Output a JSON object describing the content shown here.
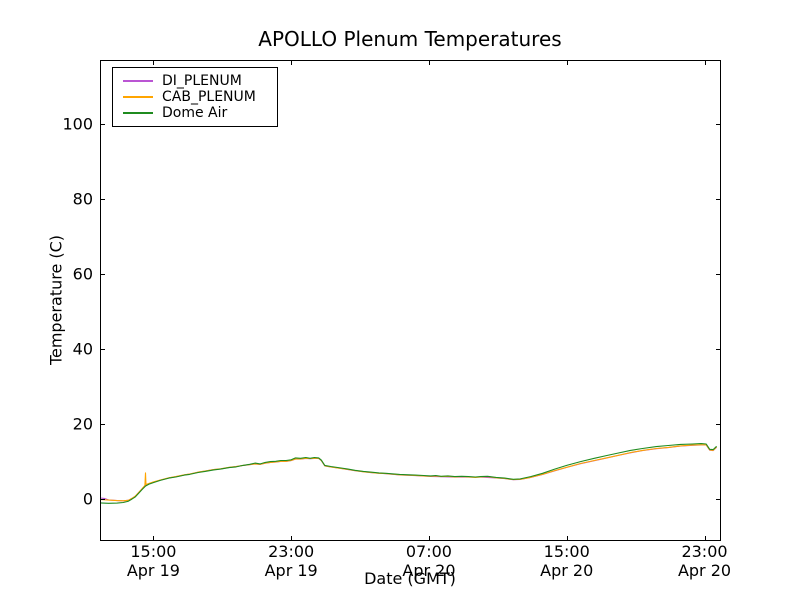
{
  "chart_data": {
    "type": "line",
    "title": "APOLLO Plenum Temperatures",
    "xlabel": "Date (GMT)",
    "ylabel": "Temperature (C)",
    "grid": false,
    "axis_color": "#000000",
    "background_color": "#ffffff",
    "ylim": [
      -11,
      117
    ],
    "yticks": [
      0,
      20,
      40,
      60,
      80,
      100
    ],
    "x_unit": "hours relative to 15:00 Apr 19 GMT",
    "xlim_hours": [
      -3.1,
      32.9
    ],
    "xticks": [
      {
        "hour": 0,
        "time": "15:00",
        "date": "Apr 19"
      },
      {
        "hour": 8,
        "time": "23:00",
        "date": "Apr 19"
      },
      {
        "hour": 16,
        "time": "07:00",
        "date": "Apr 20"
      },
      {
        "hour": 24,
        "time": "15:00",
        "date": "Apr 20"
      },
      {
        "hour": 32,
        "time": "23:00",
        "date": "Apr 20"
      }
    ],
    "legend": {
      "position": "upper left"
    },
    "series": [
      {
        "name": "DI_PLENUM",
        "color": "#ba55d3",
        "points": [
          [
            -3.1,
            0.2
          ],
          [
            -2.85,
            0.1
          ],
          [
            -2.6,
            -0.3
          ],
          [
            -2.1,
            -0.5
          ],
          [
            -1.75,
            -0.55
          ],
          [
            -1.45,
            -0.42
          ],
          [
            -1.25,
            0.08
          ],
          [
            -1.05,
            0.68
          ],
          [
            -0.85,
            1.68
          ],
          [
            -0.65,
            2.68
          ],
          [
            -0.45,
            3.5
          ],
          [
            -0.25,
            4.05
          ],
          [
            0,
            4.45
          ],
          [
            0.4,
            4.97
          ],
          [
            0.9,
            5.57
          ],
          [
            1.3,
            5.87
          ],
          [
            1.8,
            6.37
          ],
          [
            2.1,
            6.57
          ],
          [
            2.6,
            7.07
          ],
          [
            3,
            7.37
          ],
          [
            3.5,
            7.77
          ],
          [
            3.9,
            7.97
          ],
          [
            4.4,
            8.37
          ],
          [
            4.8,
            8.57
          ],
          [
            5.2,
            8.87
          ],
          [
            5.6,
            9.07
          ],
          [
            5.9,
            9.27
          ],
          [
            6.2,
            9.17
          ],
          [
            6.5,
            9.47
          ],
          [
            6.8,
            9.67
          ],
          [
            7.1,
            9.77
          ],
          [
            7.4,
            9.97
          ],
          [
            7.7,
            9.97
          ],
          [
            8,
            10.17
          ],
          [
            8.25,
            10.57
          ],
          [
            8.55,
            10.57
          ],
          [
            8.85,
            10.77
          ],
          [
            9.1,
            10.67
          ],
          [
            9.35,
            10.77
          ],
          [
            9.6,
            10.77
          ],
          [
            9.75,
            10.17
          ],
          [
            9.95,
            8.77
          ],
          [
            10.3,
            8.47
          ],
          [
            10.9,
            8.07
          ],
          [
            11.7,
            7.47
          ],
          [
            12.6,
            6.97
          ],
          [
            13.5,
            6.67
          ],
          [
            14.3,
            6.37
          ],
          [
            15.2,
            6.17
          ],
          [
            16.1,
            5.97
          ],
          [
            16.7,
            5.87
          ],
          [
            17.5,
            5.77
          ],
          [
            18.3,
            5.77
          ],
          [
            19,
            5.77
          ],
          [
            19.9,
            5.57
          ],
          [
            20.4,
            5.37
          ],
          [
            20.9,
            5.07
          ],
          [
            21.3,
            5.17
          ],
          [
            21.9,
            5.67
          ],
          [
            22.6,
            6.47
          ],
          [
            23.3,
            7.45
          ],
          [
            24,
            8.35
          ],
          [
            24.8,
            9.35
          ],
          [
            25.6,
            10.15
          ],
          [
            26.3,
            10.85
          ],
          [
            27,
            11.55
          ],
          [
            27.7,
            12.25
          ],
          [
            28.4,
            12.85
          ],
          [
            29.2,
            13.35
          ],
          [
            29.9,
            13.65
          ],
          [
            30.6,
            14.05
          ],
          [
            31.3,
            14.25
          ],
          [
            31.8,
            14.35
          ],
          [
            32.1,
            14.35
          ],
          [
            32.3,
            12.95
          ],
          [
            32.5,
            12.85
          ],
          [
            32.7,
            13.75
          ]
        ]
      },
      {
        "name": "CAB_PLENUM",
        "color": "#ffa500",
        "points": [
          [
            -3.1,
            -0.2
          ],
          [
            -2.6,
            -0.35
          ],
          [
            -2.1,
            -0.5
          ],
          [
            -1.75,
            -0.55
          ],
          [
            -1.45,
            -0.4
          ],
          [
            -1.25,
            0.1
          ],
          [
            -1.05,
            0.7
          ],
          [
            -0.85,
            1.7
          ],
          [
            -0.65,
            2.7
          ],
          [
            -0.52,
            3.4
          ],
          [
            -0.49,
            3.6
          ],
          [
            -0.46,
            6.9
          ],
          [
            -0.43,
            3.8
          ],
          [
            -0.25,
            4.1
          ],
          [
            0,
            4.5
          ],
          [
            0.4,
            5
          ],
          [
            0.9,
            5.6
          ],
          [
            1.3,
            5.9
          ],
          [
            1.8,
            6.4
          ],
          [
            2.1,
            6.6
          ],
          [
            2.6,
            7.1
          ],
          [
            3,
            7.4
          ],
          [
            3.5,
            7.8
          ],
          [
            3.9,
            8
          ],
          [
            4.4,
            8.4
          ],
          [
            4.8,
            8.6
          ],
          [
            5.2,
            8.9
          ],
          [
            5.6,
            9.1
          ],
          [
            5.9,
            9.3
          ],
          [
            6.2,
            9.2
          ],
          [
            6.5,
            9.5
          ],
          [
            6.8,
            9.7
          ],
          [
            7.1,
            9.8
          ],
          [
            7.4,
            10
          ],
          [
            7.7,
            10
          ],
          [
            8,
            10.2
          ],
          [
            8.25,
            10.6
          ],
          [
            8.55,
            10.6
          ],
          [
            8.85,
            10.8
          ],
          [
            9.1,
            10.7
          ],
          [
            9.35,
            10.8
          ],
          [
            9.6,
            10.8
          ],
          [
            9.75,
            10.2
          ],
          [
            9.95,
            8.8
          ],
          [
            10.3,
            8.5
          ],
          [
            10.9,
            8.1
          ],
          [
            11.3,
            7.8
          ],
          [
            11.7,
            7.5
          ],
          [
            12.2,
            7.2
          ],
          [
            12.6,
            7
          ],
          [
            13.1,
            6.8
          ],
          [
            13.5,
            6.7
          ],
          [
            14.3,
            6.4
          ],
          [
            15.2,
            6.2
          ],
          [
            15.7,
            6.1
          ],
          [
            16.1,
            6
          ],
          [
            16.4,
            6.1
          ],
          [
            16.7,
            5.9
          ],
          [
            17.1,
            6
          ],
          [
            17.5,
            5.8
          ],
          [
            17.9,
            5.9
          ],
          [
            18.3,
            5.8
          ],
          [
            18.7,
            5.7
          ],
          [
            19,
            5.8
          ],
          [
            19.4,
            5.9
          ],
          [
            19.9,
            5.6
          ],
          [
            20.4,
            5.4
          ],
          [
            20.9,
            5.1
          ],
          [
            21.3,
            5.2
          ],
          [
            21.9,
            5.7
          ],
          [
            22.6,
            6.5
          ],
          [
            23.3,
            7.5
          ],
          [
            24,
            8.4
          ],
          [
            24.8,
            9.4
          ],
          [
            25.6,
            10.2
          ],
          [
            26.3,
            10.9
          ],
          [
            27,
            11.6
          ],
          [
            27.7,
            12.3
          ],
          [
            28.4,
            12.9
          ],
          [
            29.2,
            13.4
          ],
          [
            29.9,
            13.7
          ],
          [
            30.6,
            14.1
          ],
          [
            31.3,
            14.3
          ],
          [
            31.8,
            14.4
          ],
          [
            32.1,
            14.4
          ],
          [
            32.3,
            13
          ],
          [
            32.5,
            12.9
          ],
          [
            32.7,
            13.8
          ]
        ]
      },
      {
        "name": "Dome Air",
        "color": "#1f8b1f",
        "points": [
          [
            -3.1,
            -1.1
          ],
          [
            -2.6,
            -1.2
          ],
          [
            -2.1,
            -1.15
          ],
          [
            -1.75,
            -1
          ],
          [
            -1.45,
            -0.65
          ],
          [
            -1.25,
            -0.1
          ],
          [
            -1.05,
            0.5
          ],
          [
            -0.85,
            1.5
          ],
          [
            -0.65,
            2.5
          ],
          [
            -0.45,
            3.4
          ],
          [
            -0.25,
            3.9
          ],
          [
            0,
            4.3
          ],
          [
            0.4,
            4.9
          ],
          [
            0.9,
            5.5
          ],
          [
            1.3,
            5.8
          ],
          [
            1.8,
            6.3
          ],
          [
            2.1,
            6.5
          ],
          [
            2.6,
            7
          ],
          [
            3,
            7.3
          ],
          [
            3.5,
            7.7
          ],
          [
            3.9,
            7.9
          ],
          [
            4.4,
            8.3
          ],
          [
            4.8,
            8.5
          ],
          [
            5.2,
            8.9
          ],
          [
            5.6,
            9.2
          ],
          [
            5.9,
            9.5
          ],
          [
            6.2,
            9.3
          ],
          [
            6.5,
            9.7
          ],
          [
            6.8,
            9.9
          ],
          [
            7.1,
            10
          ],
          [
            7.4,
            10.2
          ],
          [
            7.7,
            10.2
          ],
          [
            8,
            10.4
          ],
          [
            8.25,
            10.9
          ],
          [
            8.55,
            10.8
          ],
          [
            8.85,
            11
          ],
          [
            9.1,
            10.8
          ],
          [
            9.35,
            11
          ],
          [
            9.6,
            10.9
          ],
          [
            9.75,
            10.3
          ],
          [
            9.95,
            8.9
          ],
          [
            10.3,
            8.6
          ],
          [
            10.9,
            8.2
          ],
          [
            11.3,
            7.9
          ],
          [
            11.7,
            7.6
          ],
          [
            12.2,
            7.3
          ],
          [
            12.6,
            7.1
          ],
          [
            13.1,
            6.9
          ],
          [
            13.5,
            6.8
          ],
          [
            14.3,
            6.5
          ],
          [
            15.2,
            6.3
          ],
          [
            15.7,
            6.2
          ],
          [
            16.1,
            6.1
          ],
          [
            16.4,
            6.2
          ],
          [
            16.7,
            6
          ],
          [
            17.1,
            6.1
          ],
          [
            17.5,
            5.9
          ],
          [
            17.9,
            6
          ],
          [
            18.3,
            5.9
          ],
          [
            18.7,
            5.8
          ],
          [
            19,
            5.9
          ],
          [
            19.4,
            6
          ],
          [
            19.9,
            5.7
          ],
          [
            20.4,
            5.5
          ],
          [
            20.9,
            5.2
          ],
          [
            21.3,
            5.3
          ],
          [
            21.9,
            5.9
          ],
          [
            22.6,
            6.8
          ],
          [
            23.3,
            7.9
          ],
          [
            24,
            8.9
          ],
          [
            24.8,
            9.9
          ],
          [
            25.6,
            10.8
          ],
          [
            26.3,
            11.5
          ],
          [
            27,
            12.2
          ],
          [
            27.7,
            12.9
          ],
          [
            28.4,
            13.4
          ],
          [
            29.2,
            13.9
          ],
          [
            29.9,
            14.2
          ],
          [
            30.6,
            14.5
          ],
          [
            31.3,
            14.6
          ],
          [
            31.8,
            14.7
          ],
          [
            32.1,
            14.6
          ],
          [
            32.3,
            13.2
          ],
          [
            32.5,
            13.1
          ],
          [
            32.7,
            14
          ]
        ]
      }
    ]
  }
}
